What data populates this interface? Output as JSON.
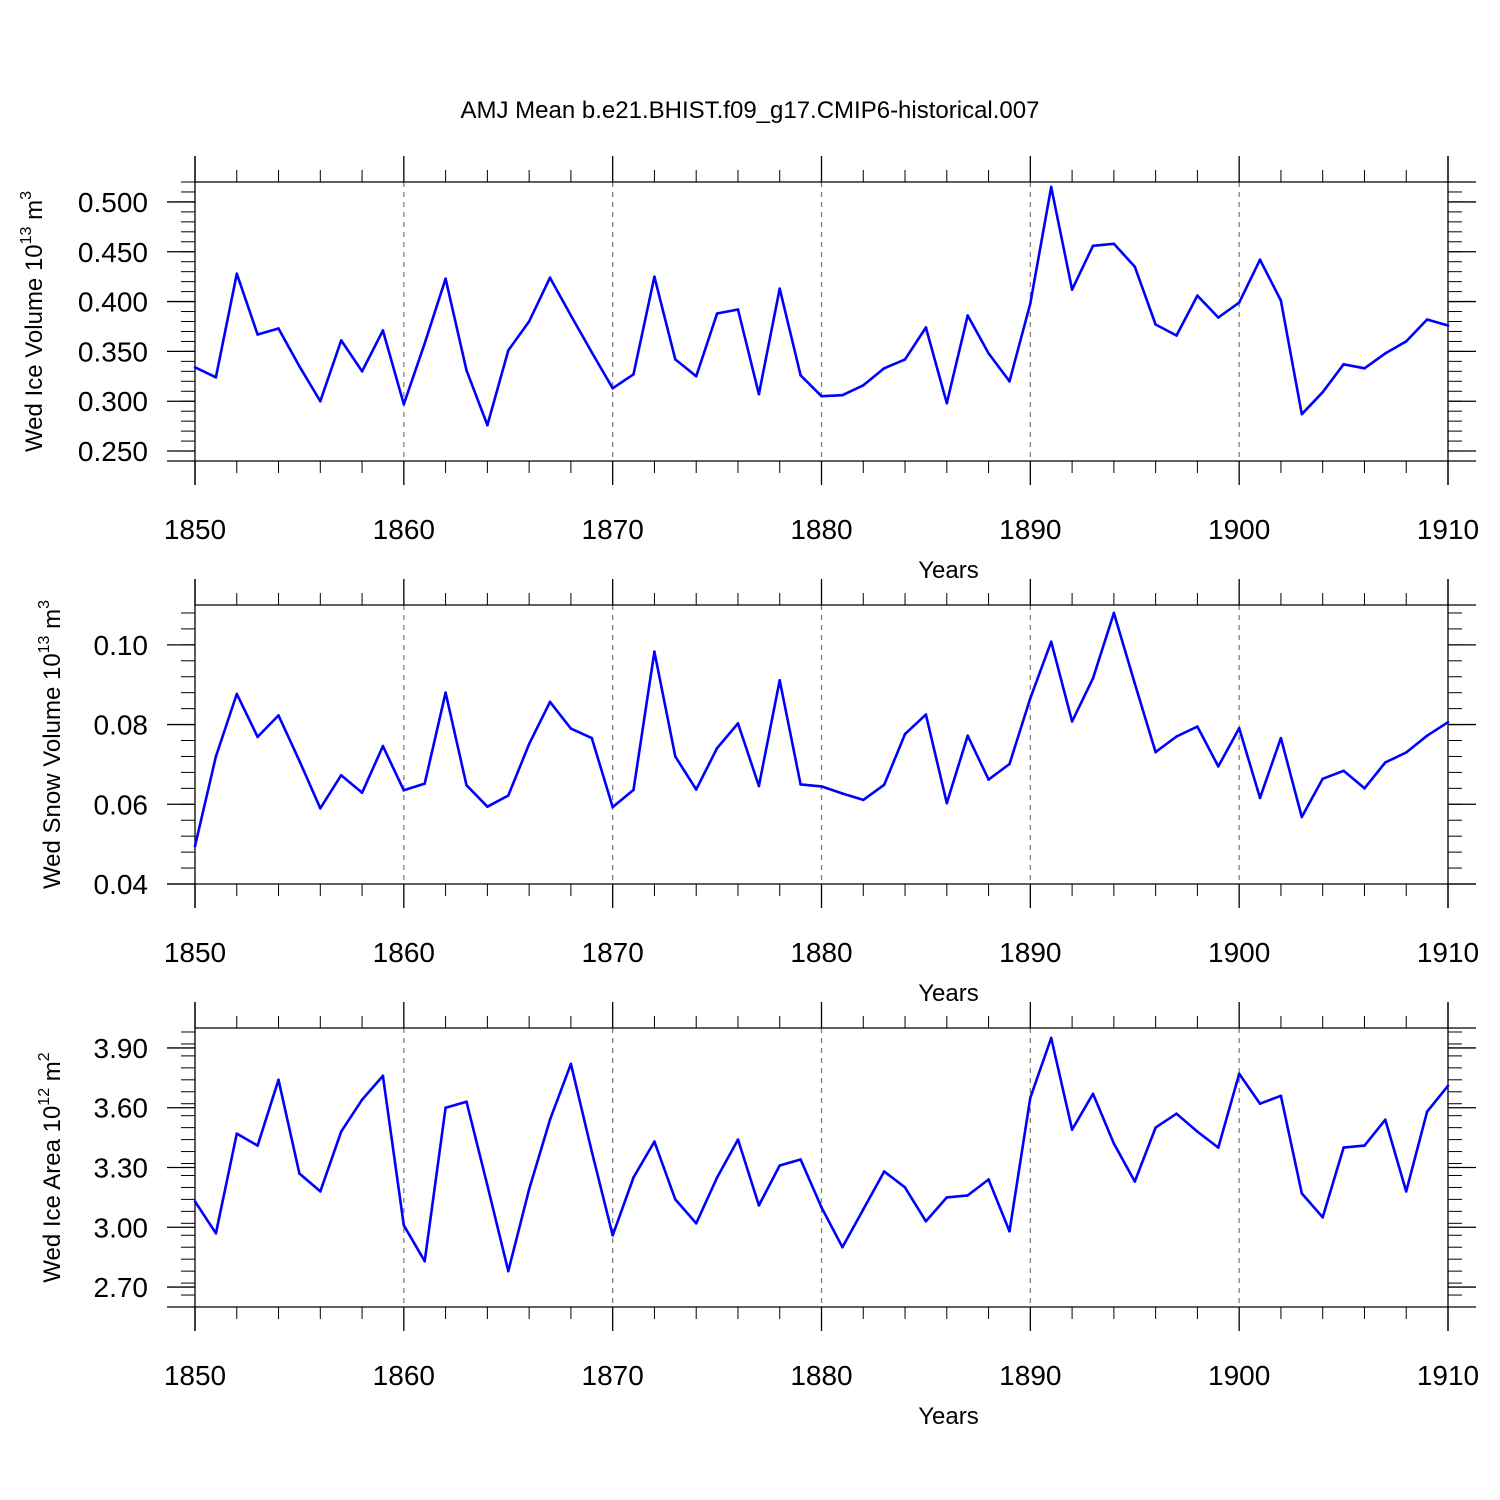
{
  "title": "AMJ Mean b.e21.BHIST.f09_g17.CMIP6-historical.007",
  "colors": {
    "line": "#0000ff",
    "axis": "#000000",
    "grid": "#808080"
  },
  "chart_data": [
    {
      "type": "line",
      "ylabel": "Wed Ice Volume 10",
      "ylabel_exp": "13",
      "ylabel_unit": " m",
      "ylabel_unit_exp": "3",
      "xlabel": "Years",
      "xlim": [
        1850,
        1910
      ],
      "ylim": [
        0.24,
        0.52
      ],
      "yticks": [
        0.25,
        0.3,
        0.35,
        0.4,
        0.45,
        0.5
      ],
      "ytick_labels": [
        "0.250",
        "0.300",
        "0.350",
        "0.400",
        "0.450",
        "0.500"
      ],
      "xticks": [
        1850,
        1860,
        1870,
        1880,
        1890,
        1900,
        1910
      ],
      "xtick_labels": [
        "1850",
        "1860",
        "1870",
        "1880",
        "1890",
        "1900",
        "1910"
      ],
      "grid_x": [
        1860,
        1870,
        1880,
        1890,
        1900
      ],
      "x": [
        1850,
        1851,
        1852,
        1853,
        1854,
        1855,
        1856,
        1857,
        1858,
        1859,
        1860,
        1861,
        1862,
        1863,
        1864,
        1865,
        1866,
        1867,
        1868,
        1869,
        1870,
        1871,
        1872,
        1873,
        1874,
        1875,
        1876,
        1877,
        1878,
        1879,
        1880,
        1881,
        1882,
        1883,
        1884,
        1885,
        1886,
        1887,
        1888,
        1889,
        1890,
        1891,
        1892,
        1893,
        1894,
        1895,
        1896,
        1897,
        1898,
        1899,
        1900,
        1901,
        1902,
        1903,
        1904,
        1905,
        1906,
        1907,
        1908,
        1909,
        1910
      ],
      "values": [
        0.334,
        0.324,
        0.428,
        0.367,
        0.373,
        0.335,
        0.3,
        0.361,
        0.33,
        0.371,
        0.297,
        0.358,
        0.423,
        0.331,
        0.276,
        0.351,
        0.38,
        0.424,
        0.386,
        0.349,
        0.313,
        0.327,
        0.425,
        0.342,
        0.325,
        0.388,
        0.392,
        0.307,
        0.413,
        0.326,
        0.305,
        0.306,
        0.316,
        0.333,
        0.342,
        0.374,
        0.298,
        0.386,
        0.348,
        0.32,
        0.398,
        0.515,
        0.412,
        0.456,
        0.458,
        0.435,
        0.377,
        0.366,
        0.406,
        0.384,
        0.399,
        0.442,
        0.401,
        0.287,
        0.309,
        0.337,
        0.333,
        0.348,
        0.36,
        0.382,
        0.376
      ]
    },
    {
      "type": "line",
      "ylabel": "Wed Snow Volume 10",
      "ylabel_exp": "13",
      "ylabel_unit": " m",
      "ylabel_unit_exp": "3",
      "xlabel": "Years",
      "xlim": [
        1850,
        1910
      ],
      "ylim": [
        0.04,
        0.11
      ],
      "yticks": [
        0.04,
        0.06,
        0.08,
        0.1
      ],
      "ytick_labels": [
        "0.04",
        "0.06",
        "0.08",
        "0.10"
      ],
      "xticks": [
        1850,
        1860,
        1870,
        1880,
        1890,
        1900,
        1910
      ],
      "xtick_labels": [
        "1850",
        "1860",
        "1870",
        "1880",
        "1890",
        "1900",
        "1910"
      ],
      "grid_x": [
        1860,
        1870,
        1880,
        1890,
        1900
      ],
      "x": [
        1850,
        1851,
        1852,
        1853,
        1854,
        1855,
        1856,
        1857,
        1858,
        1859,
        1860,
        1861,
        1862,
        1863,
        1864,
        1865,
        1866,
        1867,
        1868,
        1869,
        1870,
        1871,
        1872,
        1873,
        1874,
        1875,
        1876,
        1877,
        1878,
        1879,
        1880,
        1881,
        1882,
        1883,
        1884,
        1885,
        1886,
        1887,
        1888,
        1889,
        1890,
        1891,
        1892,
        1893,
        1894,
        1895,
        1896,
        1897,
        1898,
        1899,
        1900,
        1901,
        1902,
        1903,
        1904,
        1905,
        1906,
        1907,
        1908,
        1909,
        1910
      ],
      "values": [
        0.0495,
        0.072,
        0.0877,
        0.0769,
        0.0823,
        0.0709,
        0.059,
        0.0673,
        0.0629,
        0.0746,
        0.0635,
        0.0652,
        0.088,
        0.0648,
        0.0594,
        0.0622,
        0.0751,
        0.0857,
        0.079,
        0.0766,
        0.0593,
        0.0636,
        0.0983,
        0.072,
        0.0637,
        0.0741,
        0.0803,
        0.0646,
        0.0911,
        0.065,
        0.0645,
        0.0627,
        0.0611,
        0.0649,
        0.0776,
        0.0825,
        0.0603,
        0.0772,
        0.0662,
        0.0701,
        0.0866,
        0.1008,
        0.0808,
        0.0916,
        0.108,
        0.0903,
        0.0731,
        0.077,
        0.0795,
        0.0695,
        0.0791,
        0.0616,
        0.0766,
        0.0568,
        0.0664,
        0.0684,
        0.064,
        0.0705,
        0.073,
        0.0772,
        0.0806
      ]
    },
    {
      "type": "line",
      "ylabel": "Wed Ice Area 10",
      "ylabel_exp": "12",
      "ylabel_unit": " m",
      "ylabel_unit_exp": "2",
      "xlabel": "Years",
      "xlim": [
        1850,
        1910
      ],
      "ylim": [
        2.6,
        4.0
      ],
      "yticks": [
        2.7,
        3.0,
        3.3,
        3.6,
        3.9
      ],
      "ytick_labels": [
        "2.70",
        "3.00",
        "3.30",
        "3.60",
        "3.90"
      ],
      "xticks": [
        1850,
        1860,
        1870,
        1880,
        1890,
        1900,
        1910
      ],
      "xtick_labels": [
        "1850",
        "1860",
        "1870",
        "1880",
        "1890",
        "1900",
        "1910"
      ],
      "grid_x": [
        1860,
        1870,
        1880,
        1890,
        1900
      ],
      "x": [
        1850,
        1851,
        1852,
        1853,
        1854,
        1855,
        1856,
        1857,
        1858,
        1859,
        1860,
        1861,
        1862,
        1863,
        1864,
        1865,
        1866,
        1867,
        1868,
        1869,
        1870,
        1871,
        1872,
        1873,
        1874,
        1875,
        1876,
        1877,
        1878,
        1879,
        1880,
        1881,
        1882,
        1883,
        1884,
        1885,
        1886,
        1887,
        1888,
        1889,
        1890,
        1891,
        1892,
        1893,
        1894,
        1895,
        1896,
        1897,
        1898,
        1899,
        1900,
        1901,
        1902,
        1903,
        1904,
        1905,
        1906,
        1907,
        1908,
        1909,
        1910
      ],
      "values": [
        3.13,
        2.97,
        3.47,
        3.41,
        3.74,
        3.27,
        3.18,
        3.48,
        3.64,
        3.76,
        3.01,
        2.83,
        3.6,
        3.63,
        3.21,
        2.78,
        3.19,
        3.54,
        3.82,
        3.38,
        2.96,
        3.25,
        3.43,
        3.14,
        3.02,
        3.25,
        3.44,
        3.11,
        3.31,
        3.34,
        3.1,
        2.9,
        3.09,
        3.28,
        3.2,
        3.03,
        3.15,
        3.16,
        3.24,
        2.98,
        3.65,
        3.95,
        3.49,
        3.67,
        3.42,
        3.23,
        3.5,
        3.57,
        3.48,
        3.4,
        3.77,
        3.62,
        3.66,
        3.17,
        3.05,
        3.4,
        3.41,
        3.54,
        3.18,
        3.58,
        3.71
      ]
    }
  ]
}
